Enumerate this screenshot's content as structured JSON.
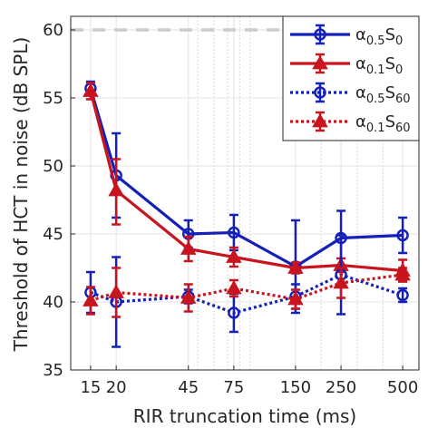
{
  "chart_data": {
    "type": "line",
    "title": "",
    "xlabel": "RIR truncation time (ms)",
    "ylabel": "Threshold of HCT in noise (dB SPL)",
    "x_scale": "log",
    "xlim": [
      12,
      600
    ],
    "ylim": [
      35,
      61
    ],
    "x_ticks": [
      15,
      20,
      45,
      75,
      150,
      250,
      500
    ],
    "x_tick_labels": [
      "15",
      "20",
      "45",
      "75",
      "150",
      "250",
      "500"
    ],
    "y_ticks": [
      35,
      40,
      45,
      50,
      55,
      60
    ],
    "y_tick_labels": [
      "35",
      "40",
      "45",
      "50",
      "55",
      "60"
    ],
    "minor_x_gridlines": [
      50,
      60,
      70,
      80,
      90,
      200,
      300,
      400
    ],
    "grid": true,
    "reference_line": {
      "y": 60,
      "style": "dashed",
      "color": "#cccccc"
    },
    "legend_position": "top-right",
    "series": [
      {
        "name": "α0.5S0",
        "legend": {
          "base": "α",
          "sub1": "0.5",
          "mid": "S",
          "sub2": "0"
        },
        "color": "#1420b8",
        "linestyle": "solid",
        "marker": "circle",
        "x": [
          15,
          20,
          45,
          75,
          150,
          250,
          500
        ],
        "y": [
          55.7,
          49.3,
          45.0,
          45.1,
          42.6,
          44.7,
          44.9
        ],
        "err_low": [
          55.2,
          46.2,
          44.0,
          43.8,
          39.2,
          42.7,
          43.6
        ],
        "err_high": [
          56.2,
          52.4,
          46.0,
          46.4,
          46.0,
          46.7,
          46.2
        ]
      },
      {
        "name": "α0.1S0",
        "legend": {
          "base": "α",
          "sub1": "0.1",
          "mid": "S",
          "sub2": "0"
        },
        "color": "#c8141e",
        "linestyle": "solid",
        "marker": "triangle",
        "x": [
          15,
          20,
          45,
          75,
          150,
          250,
          500
        ],
        "y": [
          55.5,
          48.2,
          43.9,
          43.3,
          42.5,
          42.7,
          42.3
        ],
        "err_low": [
          54.9,
          45.7,
          43.0,
          42.6,
          42.1,
          42.2,
          41.5
        ],
        "err_high": [
          56.1,
          50.5,
          44.8,
          44.0,
          42.9,
          43.2,
          43.1
        ]
      },
      {
        "name": "α0.5S60",
        "legend": {
          "base": "α",
          "sub1": "0.5",
          "mid": "S",
          "sub2": "60"
        },
        "color": "#1420b8",
        "linestyle": "dotted",
        "marker": "circle",
        "x": [
          15,
          20,
          45,
          75,
          150,
          250,
          500
        ],
        "y": [
          40.7,
          40.0,
          40.4,
          39.2,
          40.4,
          42.0,
          40.5
        ],
        "err_low": [
          39.2,
          36.7,
          39.9,
          37.8,
          39.5,
          39.1,
          40.0
        ],
        "err_high": [
          42.2,
          43.3,
          40.9,
          40.6,
          41.3,
          44.9,
          41.0
        ]
      },
      {
        "name": "α0.1S60",
        "legend": {
          "base": "α",
          "sub1": "0.1",
          "mid": "S",
          "sub2": "60"
        },
        "color": "#c8141e",
        "linestyle": "dotted",
        "marker": "triangle",
        "x": [
          15,
          20,
          45,
          75,
          150,
          250,
          500
        ],
        "y": [
          40.1,
          40.7,
          40.3,
          41.0,
          40.2,
          41.4,
          42.0
        ],
        "err_low": [
          39.1,
          38.9,
          39.3,
          40.4,
          39.5,
          40.3,
          41.5
        ],
        "err_high": [
          41.1,
          42.5,
          41.3,
          41.6,
          40.9,
          42.5,
          42.5
        ]
      }
    ]
  }
}
